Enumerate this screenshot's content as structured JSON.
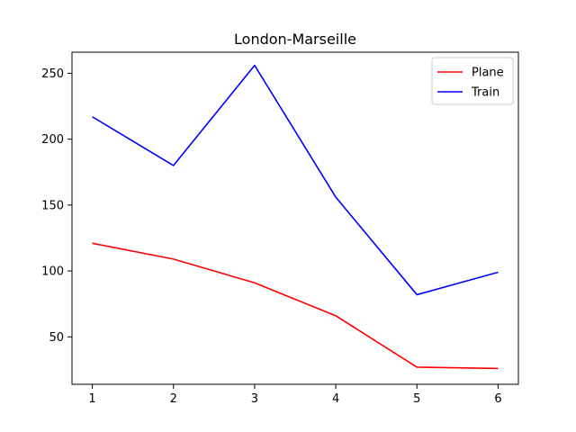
{
  "chart_data": {
    "type": "line",
    "title": "London-Marseille",
    "xlabel": "",
    "ylabel": "",
    "x": [
      1,
      2,
      3,
      4,
      5,
      6
    ],
    "xlim": [
      0.75,
      6.25
    ],
    "ylim": [
      14,
      266
    ],
    "xticks": [
      1,
      2,
      3,
      4,
      5,
      6
    ],
    "yticks": [
      50,
      100,
      150,
      200,
      250
    ],
    "grid": false,
    "legend_position": "top-right",
    "series": [
      {
        "name": "Plane",
        "color": "#ff0000",
        "values": [
          121,
          109,
          91,
          66,
          27,
          26
        ]
      },
      {
        "name": "Train",
        "color": "#0000ff",
        "values": [
          217,
          180,
          256,
          156,
          82,
          99
        ]
      }
    ]
  }
}
